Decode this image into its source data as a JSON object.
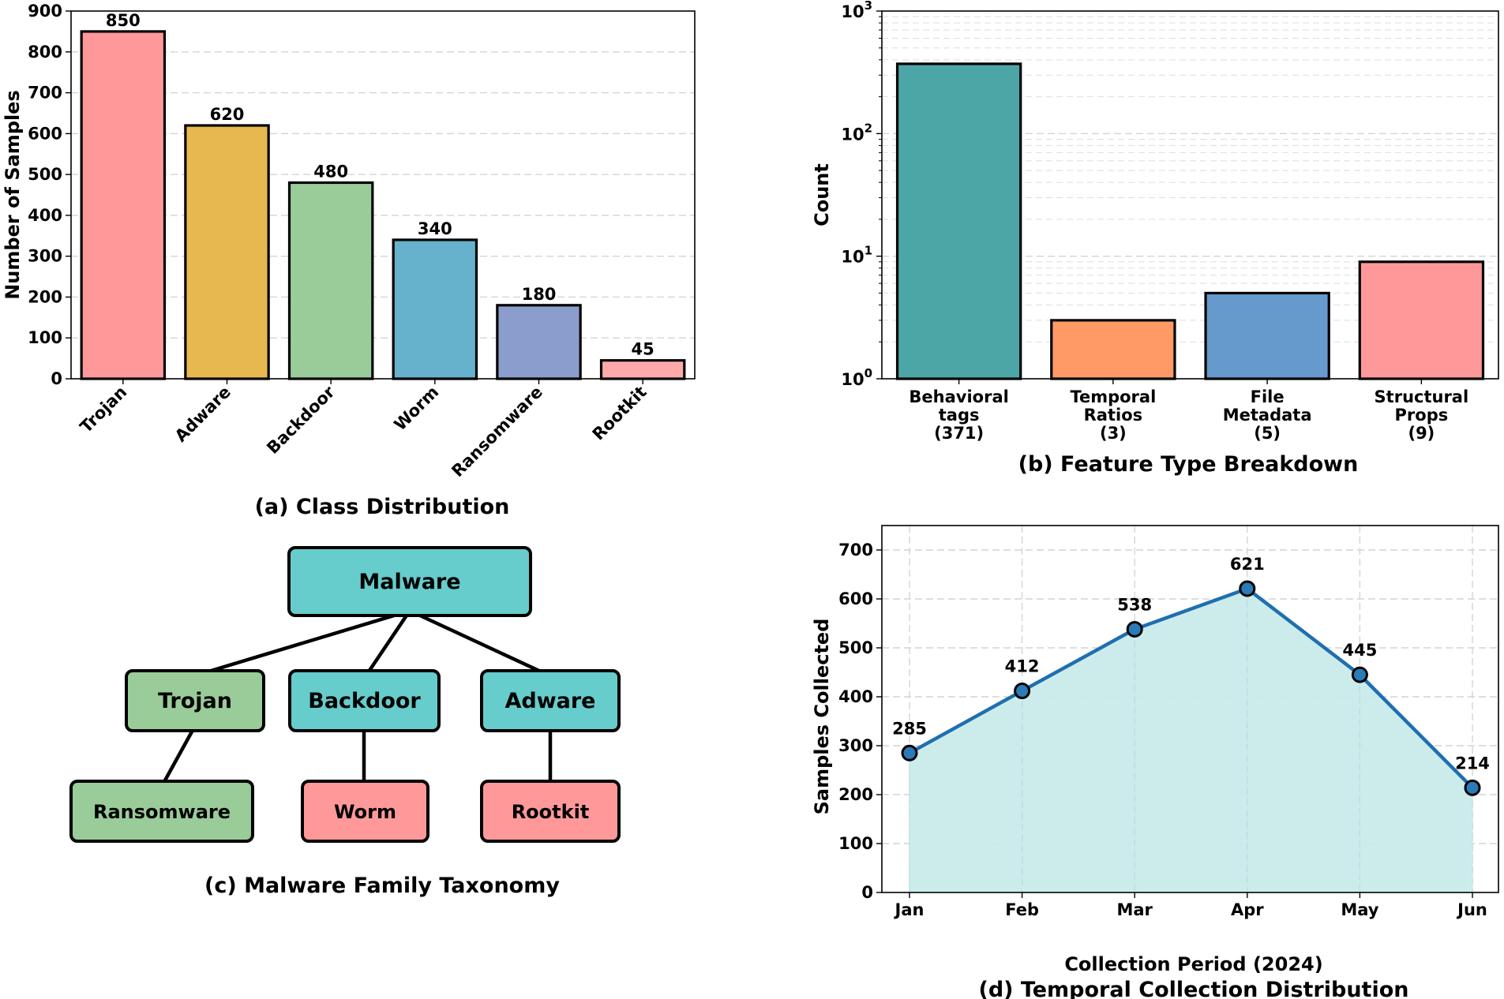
{
  "chart_data": [
    {
      "type": "bar",
      "caption": "(a) Class Distribution",
      "ylabel": "Number of Samples",
      "xlabel": "",
      "categories": [
        "Trojan",
        "Adware",
        "Backdoor",
        "Worm",
        "Ransomware",
        "Rootkit"
      ],
      "values": [
        850,
        620,
        480,
        340,
        180,
        45
      ],
      "value_labels": [
        "850",
        "620",
        "480",
        "340",
        "180",
        "45"
      ],
      "colors": [
        "#ff9999",
        "#e6b84f",
        "#99cc99",
        "#66b2cc",
        "#8b9dcc",
        "#ffaaaa"
      ],
      "ylim": [
        0,
        900
      ],
      "yticks": [
        "0",
        "100",
        "200",
        "300",
        "400",
        "500",
        "600",
        "700",
        "800",
        "900"
      ],
      "grid": "y, dashed"
    },
    {
      "type": "bar",
      "caption": "(b) Feature Type Breakdown",
      "ylabel": "Count",
      "xlabel": "",
      "yscale": "log",
      "categories": [
        [
          "Behavioral",
          "tags",
          "(371)"
        ],
        [
          "Temporal",
          "Ratios",
          "(3)"
        ],
        [
          "File",
          "Metadata",
          "(5)"
        ],
        [
          "Structural",
          "Props",
          "(9)"
        ]
      ],
      "values": [
        371,
        3,
        5,
        9
      ],
      "colors": [
        "#4da6a6",
        "#ff9966",
        "#6699cc",
        "#ff9999"
      ],
      "ylim": [
        1,
        1000
      ],
      "yticks": [
        {
          "base": "10",
          "exp": "0"
        },
        {
          "base": "10",
          "exp": "1"
        },
        {
          "base": "10",
          "exp": "2"
        },
        {
          "base": "10",
          "exp": "3"
        }
      ],
      "grid": "y, dashed (major and minor)"
    },
    {
      "type": "diagram",
      "caption": "(c) Malware Family Taxonomy",
      "root": {
        "label": "Malware",
        "color": "#66cccc"
      },
      "children": [
        {
          "label": "Trojan",
          "color": "#99cc99",
          "child": {
            "label": "Ransomware",
            "color": "#99cc99"
          }
        },
        {
          "label": "Backdoor",
          "color": "#66cccc",
          "child": {
            "label": "Worm",
            "color": "#ff9999"
          }
        },
        {
          "label": "Adware",
          "color": "#66cccc",
          "child": {
            "label": "Rootkit",
            "color": "#ff9999"
          }
        }
      ]
    },
    {
      "type": "area",
      "caption": "(d) Temporal Collection Distribution",
      "xlabel": "Collection Period (2024)",
      "ylabel": "Samples Collected",
      "categories": [
        "Jan",
        "Feb",
        "Mar",
        "Apr",
        "May",
        "Jun"
      ],
      "values": [
        285,
        412,
        538,
        621,
        445,
        214
      ],
      "value_labels": [
        "285",
        "412",
        "538",
        "621",
        "445",
        "214"
      ],
      "line_color": "#1f6fb0",
      "marker_color": "#2b7bb9",
      "fill_color": "#c9ebeb",
      "ylim": [
        0,
        750
      ],
      "yticks": [
        "0",
        "100",
        "200",
        "300",
        "400",
        "500",
        "600",
        "700"
      ],
      "grid": "both, dashed"
    }
  ]
}
